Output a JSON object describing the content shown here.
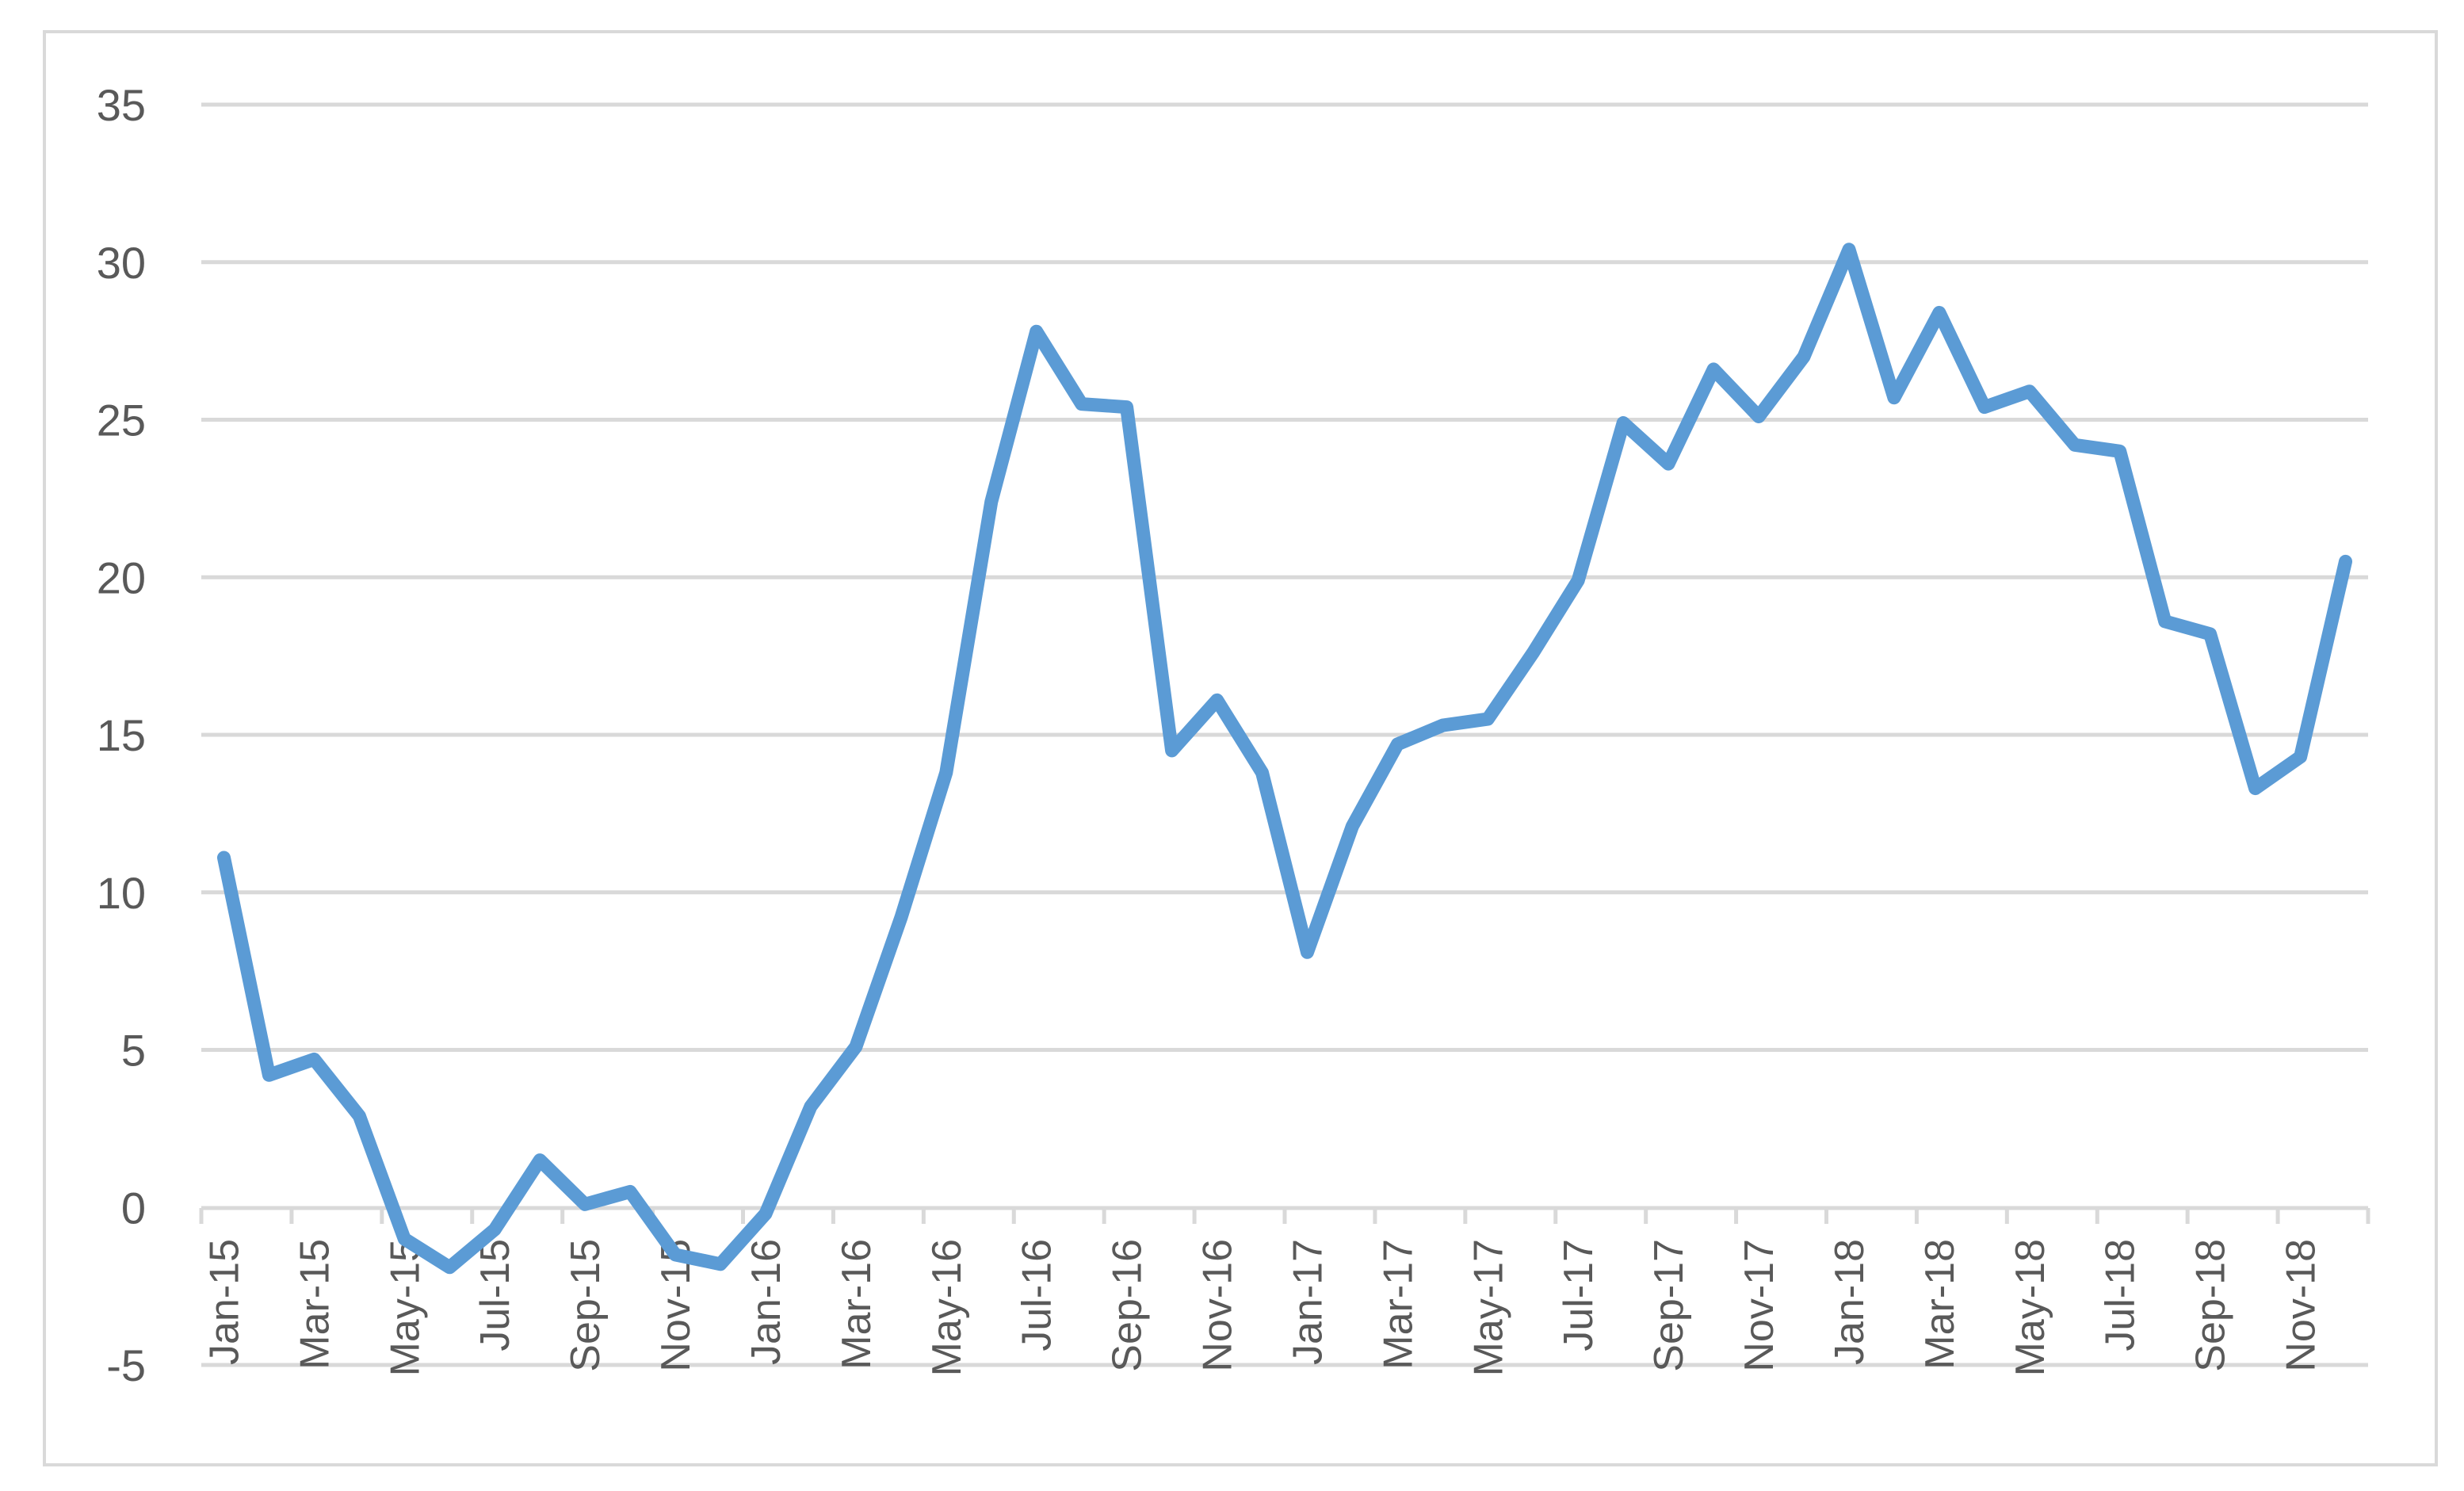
{
  "chart_data": {
    "type": "line",
    "title": "",
    "xlabel": "",
    "ylabel": "",
    "ylim": [
      -5,
      35
    ],
    "y_ticks": [
      "35",
      "30",
      "25",
      "20",
      "15",
      "10",
      "5",
      "0",
      "-5"
    ],
    "y_tick_values": [
      35,
      30,
      25,
      20,
      15,
      10,
      5,
      0,
      -5
    ],
    "grid": true,
    "legend": "none",
    "categories": [
      "Jan-15",
      "Feb-15",
      "Mar-15",
      "Apr-15",
      "May-15",
      "Jun-15",
      "Jul-15",
      "Aug-15",
      "Sep-15",
      "Oct-15",
      "Nov-15",
      "Dec-15",
      "Jan-16",
      "Feb-16",
      "Mar-16",
      "Apr-16",
      "May-16",
      "Jun-16",
      "Jul-16",
      "Aug-16",
      "Sep-16",
      "Oct-16",
      "Nov-16",
      "Dec-16",
      "Jan-17",
      "Feb-17",
      "Mar-17",
      "Apr-17",
      "May-17",
      "Jun-17",
      "Jul-17",
      "Aug-17",
      "Sep-17",
      "Oct-17",
      "Nov-17",
      "Dec-17",
      "Jan-18",
      "Feb-18",
      "Mar-18",
      "Apr-18",
      "May-18",
      "Jun-18",
      "Jul-18",
      "Aug-18",
      "Sep-18",
      "Oct-18",
      "Nov-18",
      "Dec-18"
    ],
    "x_tick_labels": [
      "Jan-15",
      "Mar-15",
      "May-15",
      "Jul-15",
      "Sep-15",
      "Nov-15",
      "Jan-16",
      "Mar-16",
      "May-16",
      "Jul-16",
      "Sep-16",
      "Nov-16",
      "Jan-17",
      "Mar-17",
      "May-17",
      "Jul-17",
      "Sep-17",
      "Nov-17",
      "Jan-18",
      "Mar-18",
      "May-18",
      "Jul-18",
      "Sep-18",
      "Nov-18"
    ],
    "series": [
      {
        "color": "#5b9bd5",
        "values": [
          11.1,
          4.2,
          4.7,
          2.9,
          -1.0,
          -1.9,
          -0.7,
          1.5,
          0.1,
          0.5,
          -1.5,
          -1.8,
          -0.2,
          3.2,
          5.1,
          9.2,
          13.8,
          22.4,
          27.8,
          25.5,
          25.4,
          14.5,
          16.1,
          13.8,
          8.1,
          12.1,
          14.7,
          15.3,
          15.5,
          17.6,
          19.9,
          24.9,
          23.6,
          26.6,
          25.1,
          27.0,
          30.4,
          25.7,
          28.4,
          25.4,
          25.9,
          24.2,
          24.0,
          18.6,
          18.2,
          13.3,
          14.3,
          20.5
        ]
      }
    ]
  }
}
